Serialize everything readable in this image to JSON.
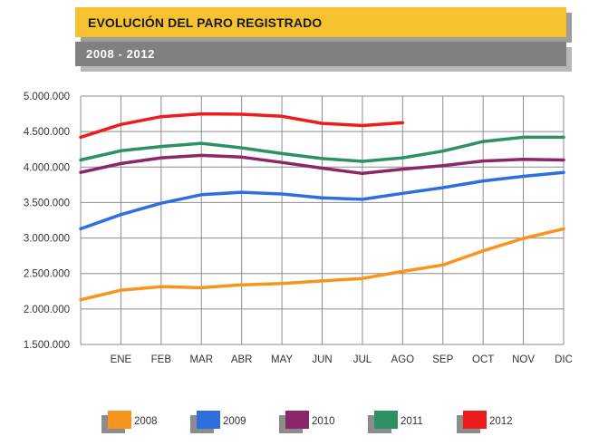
{
  "header": {
    "title": "EVOLUCIÓN DEL PARO REGISTRADO",
    "subtitle": "2008 - 2012"
  },
  "colors": {
    "title_bar": "#f6c230",
    "subtitle_bar": "#808080",
    "grid": "#8c8c8c"
  },
  "chart_data": {
    "type": "line",
    "title": "EVOLUCIÓN DEL PARO REGISTRADO",
    "subtitle": "2008 - 2012",
    "x_categories": [
      "",
      "ENE",
      "FEB",
      "MAR",
      "ABR",
      "MAY",
      "JUN",
      "JUL",
      "AGO",
      "SEP",
      "OCT",
      "NOV",
      "DIC"
    ],
    "y_ticks": [
      "5.000.000",
      "4.500.000",
      "4.000.000",
      "3.500.000",
      "3.000.000",
      "2.500.000",
      "2.000.000",
      "1.500.000"
    ],
    "ylim": [
      1500000,
      5000000
    ],
    "grid": true,
    "legend_position": "bottom",
    "series": [
      {
        "name": "2008",
        "color": "#f7941d",
        "values": [
          2130000,
          2265000,
          2315000,
          2300000,
          2340000,
          2360000,
          2395000,
          2430000,
          2530000,
          2620000,
          2820000,
          2995000,
          3130000
        ]
      },
      {
        "name": "2009",
        "color": "#2e6fe0",
        "values": [
          3130000,
          3330000,
          3490000,
          3610000,
          3645000,
          3620000,
          3565000,
          3545000,
          3630000,
          3710000,
          3805000,
          3870000,
          3925000
        ]
      },
      {
        "name": "2010",
        "color": "#8b2768",
        "values": [
          3925000,
          4050000,
          4130000,
          4165000,
          4140000,
          4065000,
          3985000,
          3910000,
          3970000,
          4020000,
          4085000,
          4110000,
          4100000
        ]
      },
      {
        "name": "2011",
        "color": "#2e9163",
        "values": [
          4100000,
          4230000,
          4290000,
          4335000,
          4270000,
          4190000,
          4120000,
          4080000,
          4130000,
          4225000,
          4360000,
          4420000,
          4420000
        ]
      },
      {
        "name": "2012",
        "color": "#ee1c1c",
        "values": [
          4420000,
          4600000,
          4710000,
          4750000,
          4745000,
          4715000,
          4615000,
          4585000,
          4625000
        ]
      }
    ]
  }
}
